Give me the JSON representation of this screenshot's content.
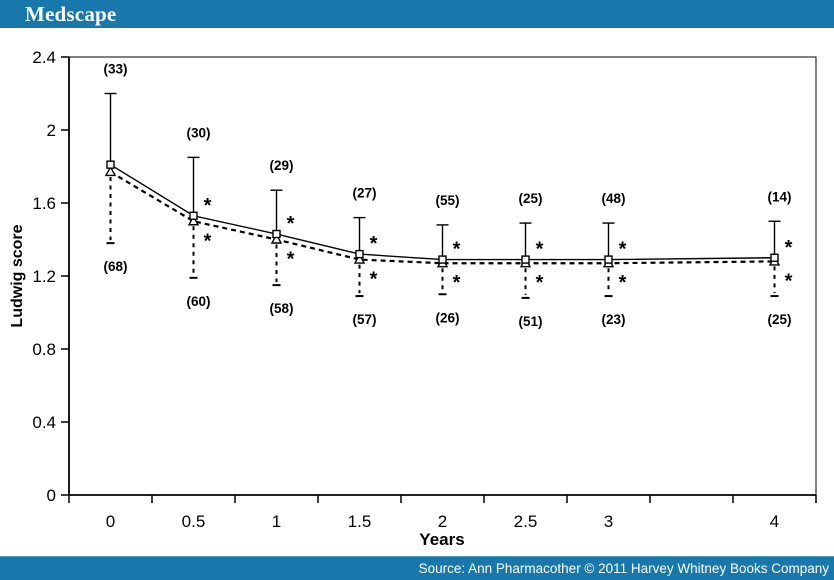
{
  "header": {
    "logo_text": "Medscape",
    "bar_color": "#1878ac"
  },
  "footer": {
    "source_text": "Source: Ann Pharmacother © 2011 Harvey Whitney Books Company",
    "bar_color": "#1878ac"
  },
  "chart_data": {
    "type": "line",
    "title": "",
    "xlabel": "Years",
    "ylabel": "Ludwig score",
    "x": [
      0,
      0.5,
      1,
      1.5,
      2,
      2.5,
      3,
      4
    ],
    "x_tick_labels": [
      "0",
      "0.5",
      "1",
      "1.5",
      "2",
      "2.5",
      "3",
      "4"
    ],
    "x_axis_style": "category axis, boundary tick marks every 0.5 years including an empty unlabeled 3.5 slot",
    "y_ticks": [
      0,
      0.4,
      0.8,
      1.2,
      1.6,
      2,
      2.4
    ],
    "y_tick_labels": [
      "0",
      "0.4",
      "0.8",
      "1.2",
      "1.6",
      "2",
      "2.4"
    ],
    "ylim": [
      0,
      2.4
    ],
    "grid": false,
    "legend": "none",
    "ink_color": "#000000",
    "series": [
      {
        "name": "solid line with open square markers and upward SD bars",
        "marker": "open-square",
        "line_style": "solid",
        "values": [
          1.81,
          1.53,
          1.43,
          1.32,
          1.29,
          1.29,
          1.29,
          1.3
        ],
        "error_upper_top": [
          2.2,
          1.85,
          1.67,
          1.52,
          1.48,
          1.49,
          1.49,
          1.5
        ],
        "n_labels_above": [
          "(33)",
          "(30)",
          "(29)",
          "(27)",
          "(55)",
          "(25)",
          "(48)",
          "(14)"
        ]
      },
      {
        "name": "dashed line with open triangle markers and downward dashed SD bars",
        "marker": "open-triangle",
        "line_style": "dashed",
        "values": [
          1.77,
          1.5,
          1.4,
          1.29,
          1.27,
          1.27,
          1.27,
          1.28
        ],
        "error_lower_bottom": [
          1.38,
          1.19,
          1.15,
          1.09,
          1.1,
          1.08,
          1.09,
          1.09
        ],
        "n_labels_below": [
          "(68)",
          "(60)",
          "(58)",
          "(57)",
          "(26)",
          "(51)",
          "(23)",
          "(25)"
        ]
      }
    ],
    "significance_marks": {
      "symbol": "*",
      "at_x": [
        0.5,
        1,
        1.5,
        2,
        2.5,
        3,
        4
      ],
      "placement": "one asterisk above and one below each point from 0.5 years onward"
    }
  }
}
